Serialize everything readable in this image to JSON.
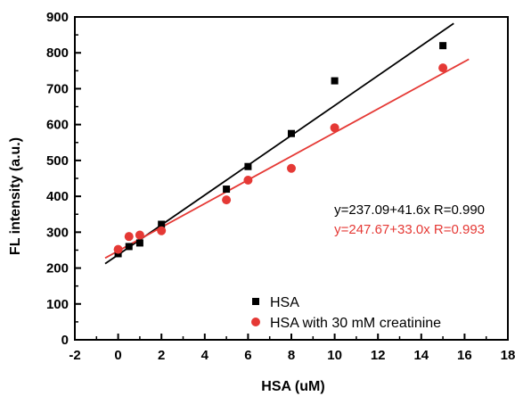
{
  "chart_data": {
    "type": "scatter",
    "xlabel": "HSA (uM)",
    "ylabel": "FL intensity (a.u.)",
    "xlim": [
      -2,
      18
    ],
    "ylim": [
      0,
      900
    ],
    "xticks": [
      -2,
      0,
      2,
      4,
      6,
      8,
      10,
      12,
      14,
      16,
      18
    ],
    "yticks": [
      0,
      100,
      200,
      300,
      400,
      500,
      600,
      700,
      800,
      900
    ],
    "grid": false,
    "legend_position": "bottom-right",
    "series": [
      {
        "name": "HSA",
        "marker": "square",
        "color": "#000000",
        "x": [
          0,
          0.5,
          1,
          2,
          5,
          6,
          8,
          10,
          15
        ],
        "y": [
          240,
          260,
          270,
          322,
          420,
          483,
          575,
          722,
          820
        ],
        "fit": {
          "equation": "y=237.09+41.6x R=0.990",
          "intercept": 237.09,
          "slope": 41.6,
          "x_range": [
            -0.6,
            15.5
          ]
        }
      },
      {
        "name": "HSA with 30 mM creatinine",
        "marker": "circle",
        "color": "#e53935",
        "x": [
          0,
          0.5,
          1,
          2,
          5,
          6,
          8,
          10,
          15
        ],
        "y": [
          252,
          288,
          292,
          304,
          390,
          445,
          478,
          591,
          758
        ],
        "fit": {
          "equation": "y=247.67+33.0x R=0.993",
          "intercept": 247.67,
          "slope": 33.0,
          "x_range": [
            -0.6,
            16.2
          ]
        }
      }
    ]
  }
}
